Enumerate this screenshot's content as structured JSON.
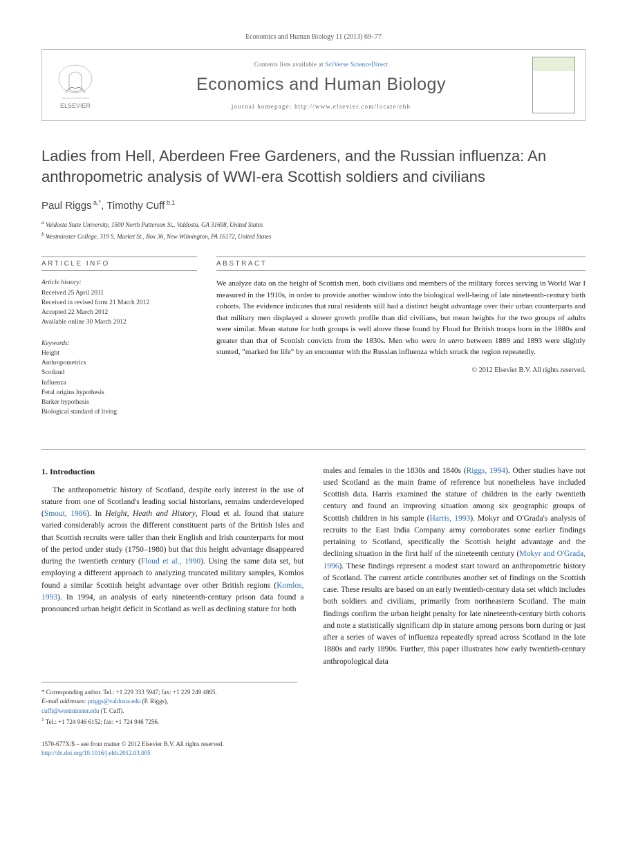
{
  "journal_ref": "Economics and Human Biology 11 (2013) 69–77",
  "header": {
    "contents_prefix": "Contents lists available at ",
    "contents_link": "SciVerse ScienceDirect",
    "journal_name": "Economics and Human Biology",
    "homepage_prefix": "journal homepage: ",
    "homepage_url": "http://www.elsevier.com/locate/ehb"
  },
  "title": "Ladies from Hell, Aberdeen Free Gardeners, and the Russian influenza: An anthropometric analysis of WWI-era Scottish soldiers and civilians",
  "authors_html": "Paul Riggs<sup> a,*</sup>, Timothy Cuff<sup> b,1</sup>",
  "affiliations": [
    "a Valdosta State University, 1500 North Patterson St., Valdosta, GA 31698, United States",
    "b Westminster College, 319 S. Market St., Box 36, New Wilmington, PA 16172, United States"
  ],
  "article_info": {
    "label": "ARTICLE INFO",
    "history_label": "Article history:",
    "history": [
      "Received 25 April 2011",
      "Received in revised form 21 March 2012",
      "Accepted 22 March 2012",
      "Available online 30 March 2012"
    ],
    "keywords_label": "Keywords:",
    "keywords": [
      "Height",
      "Anthropometrics",
      "Scotland",
      "Influenza",
      "Fetal origins hypothesis",
      "Barker hypothesis",
      "Biological standard of living"
    ]
  },
  "abstract": {
    "label": "ABSTRACT",
    "text": "We analyze data on the height of Scottish men, both civilians and members of the military forces serving in World War I measured in the 1910s, in order to provide another window into the biological well-being of late nineteenth-century birth cohorts. The evidence indicates that rural residents still had a distinct height advantage over their urban counterparts and that military men displayed a slower growth profile than did civilians, but mean heights for the two groups of adults were similar. Mean stature for both groups is well above those found by Floud for British troops born in the 1880s and greater than that of Scottish convicts from the 1830s. Men who were in utero between 1889 and 1893 were slightly stunted, \"marked for life\" by an encounter with the Russian influenza which struck the region repeatedly.",
    "copyright": "© 2012 Elsevier B.V. All rights reserved."
  },
  "body": {
    "heading": "1. Introduction",
    "col1": "The anthropometric history of Scotland, despite early interest in the use of stature from one of Scotland's leading social historians, remains underdeveloped (Smout, 1986). In Height, Heath and History, Floud et al. found that stature varied considerably across the different constituent parts of the British Isles and that Scottish recruits were taller than their English and Irish counterparts for most of the period under study (1750–1980) but that this height advantage disappeared during the twentieth century (Floud et al., 1990). Using the same data set, but employing a different approach to analyzing truncated military samples, Komlos found a similar Scottish height advantage over other British regions (Komlos, 1993). In 1994, an analysis of early nineteenth-century prison data found a pronounced urban height deficit in Scotland as well as declining stature for both",
    "col2": "males and females in the 1830s and 1840s (Riggs, 1994). Other studies have not used Scotland as the main frame of reference but nonetheless have included Scottish data. Harris examined the stature of children in the early twentieth century and found an improving situation among six geographic groups of Scottish children in his sample (Harris, 1993). Mokyr and O'Grada's analysis of recruits to the East India Company army corroborates some earlier findings pertaining to Scotland, specifically the Scottish height advantage and the declining situation in the first half of the nineteenth century (Mokyr and O'Grada, 1996). These findings represent a modest start toward an anthropometric history of Scotland. The current article contributes another set of findings on the Scottish case. These results are based on an early twentieth-century data set which includes both soldiers and civilians, primarily from northeastern Scotland. The main findings confirm the urban height penalty for late nineteenth-century birth cohorts and note a statistically significant dip in stature among persons born during or just after a series of waves of influenza repeatedly spread across Scotland in the late 1880s and early 1890s. Further, this paper illustrates how early twentieth-century anthropological data",
    "refs": {
      "smout": "Smout, 1986",
      "floud": "Floud et al., 1990",
      "komlos": "Komlos, 1993",
      "riggs": "Riggs, 1994",
      "harris": "Harris, 1993",
      "mokyr": "Mokyr and O'Grada, 1996"
    }
  },
  "footnotes": {
    "corresponding": "* Corresponding author. Tel.: +1 229 333 5947; fax: +1 229 249 4865.",
    "email_label": "E-mail addresses:",
    "emails": [
      {
        "addr": "priggs@valdosta.edu",
        "who": "(P. Riggs),"
      },
      {
        "addr": "cufft@westminster.edu",
        "who": "(T. Cuff)."
      }
    ],
    "tel1": "1 Tel.: +1 724 946 6152; fax: +1 724 946 7256."
  },
  "bottom": {
    "line1": "1570-677X/$ – see front matter © 2012 Elsevier B.V. All rights reserved.",
    "doi": "http://dx.doi.org/10.1016/j.ehb.2012.03.005"
  },
  "colors": {
    "link": "#2a6bb5",
    "text": "#222",
    "muted": "#555",
    "border": "#888"
  }
}
